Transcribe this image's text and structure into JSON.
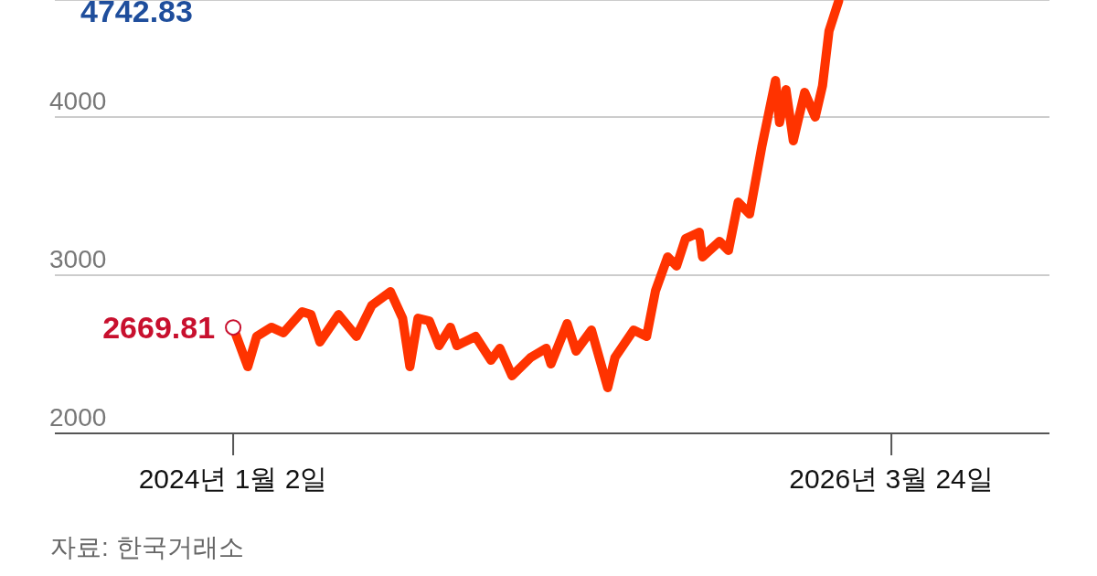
{
  "chart_data": {
    "type": "line",
    "x": [
      "2024-01-02",
      "2024-01-20",
      "2024-01-31",
      "2024-02-18",
      "2024-03-04",
      "2024-03-27",
      "2024-04-07",
      "2024-04-18",
      "2024-05-11",
      "2024-06-02",
      "2024-06-21",
      "2024-07-14",
      "2024-07-29",
      "2024-08-07",
      "2024-08-17",
      "2024-08-31",
      "2024-09-12",
      "2024-09-26",
      "2024-10-04",
      "2024-10-27",
      "2024-11-15",
      "2024-11-26",
      "2024-12-11",
      "2025-01-03",
      "2025-01-22",
      "2025-01-28",
      "2025-02-17",
      "2025-02-28",
      "2025-03-19",
      "2025-04-08",
      "2025-04-17",
      "2025-05-10",
      "2025-05-26",
      "2025-06-06",
      "2025-06-21",
      "2025-07-02",
      "2025-07-13",
      "2025-07-30",
      "2025-08-03",
      "2025-08-24",
      "2025-09-04",
      "2025-09-16",
      "2025-09-30",
      "2025-10-15",
      "2025-11-01",
      "2025-11-06",
      "2025-11-14",
      "2025-11-23",
      "2025-12-07",
      "2025-12-20",
      "2025-12-29",
      "2026-01-06",
      "2026-01-18"
    ],
    "series": [
      {
        "color": "#ff3300",
        "values": [
          2670,
          2422,
          2613,
          2671,
          2636,
          2769,
          2751,
          2578,
          2751,
          2613,
          2809,
          2896,
          2728,
          2422,
          2728,
          2711,
          2555,
          2671,
          2555,
          2613,
          2462,
          2538,
          2364,
          2480,
          2538,
          2439,
          2694,
          2520,
          2653,
          2289,
          2480,
          2653,
          2613,
          2902,
          3116,
          3058,
          3231,
          3272,
          3116,
          3214,
          3156,
          3462,
          3387,
          3809,
          4231,
          3965,
          4173,
          3850,
          4156,
          4000,
          4197,
          4543,
          4734
        ]
      }
    ],
    "xlim": [
      "2023-05-27",
      "2026-10-05"
    ],
    "xticks": [
      {
        "value": "2024-01-02",
        "label": "2024년 1월 2일"
      },
      {
        "value": "2026-03-24",
        "label": "2026년 3월 24일"
      }
    ],
    "ylim": [
      2000,
      4740
    ],
    "yticks": [
      2000,
      3000,
      4000
    ],
    "grid": "y",
    "marker": "none",
    "line_style": "solid",
    "annotations": [
      "4742.83",
      {
        "text": "2669.81",
        "x": "2024-01-02",
        "y": 2669.81
      },
      "자료: 한국거래소"
    ]
  }
}
